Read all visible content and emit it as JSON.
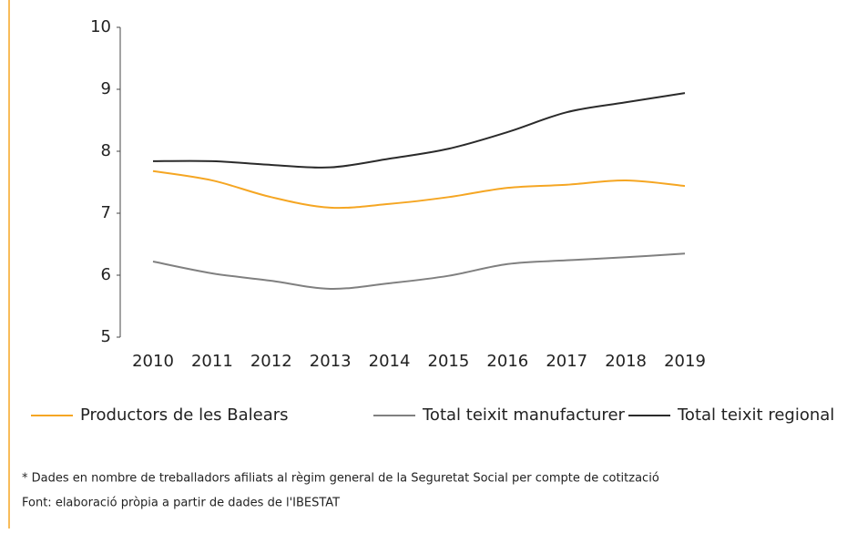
{
  "chart_data": {
    "type": "line",
    "categories": [
      "2010",
      "2011",
      "2012",
      "2013",
      "2014",
      "2015",
      "2016",
      "2017",
      "2018",
      "2019"
    ],
    "series": [
      {
        "name": "Productors de les Balears",
        "color": "#f5a623",
        "values": [
          7.68,
          7.53,
          7.26,
          7.09,
          7.15,
          7.26,
          7.41,
          7.46,
          7.53,
          7.44
        ]
      },
      {
        "name": "Total teixit manufacturer",
        "color": "#808080",
        "values": [
          6.22,
          6.03,
          5.91,
          5.78,
          5.87,
          5.99,
          6.18,
          6.24,
          6.29,
          6.35
        ]
      },
      {
        "name": "Total teixit regional",
        "color": "#2b2b2b",
        "values": [
          7.84,
          7.84,
          7.78,
          7.74,
          7.88,
          8.04,
          8.31,
          8.63,
          8.79,
          8.94
        ]
      }
    ],
    "ylim": [
      5,
      10
    ],
    "yticks": [
      5,
      6,
      7,
      8,
      9,
      10
    ],
    "grid": false,
    "notes": [
      "* Dades en nombre de treballadors afiliats al règim general de la Seguretat Social per compte de cotització",
      "Font: elaboració pròpia a partir de dades de l'IBESTAT"
    ]
  }
}
